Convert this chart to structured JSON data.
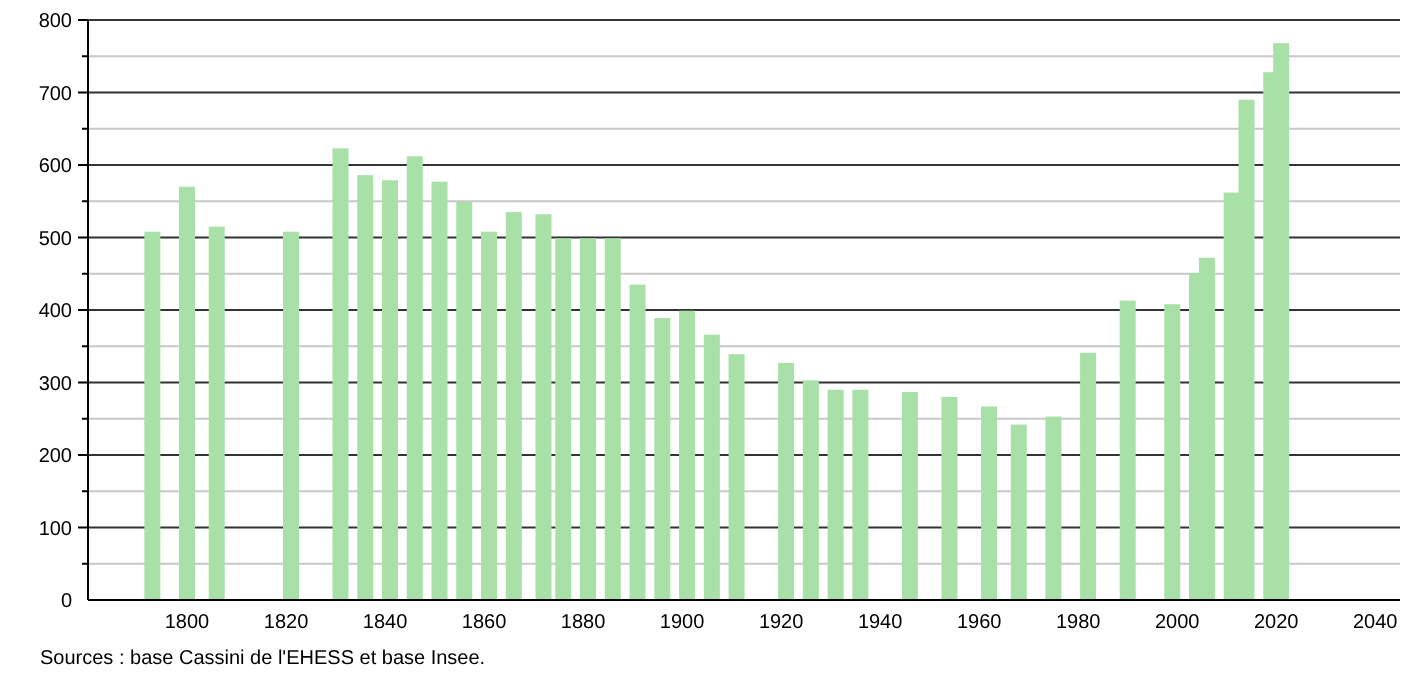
{
  "chart_data": {
    "type": "bar",
    "annotations": [
      "Sources : base Cassini de l'EHESS et base Insee."
    ],
    "x": [
      1793,
      1800,
      1806,
      1821,
      1831,
      1836,
      1841,
      1846,
      1851,
      1856,
      1861,
      1866,
      1872,
      1876,
      1881,
      1886,
      1891,
      1896,
      1901,
      1906,
      1911,
      1921,
      1926,
      1931,
      1936,
      1946,
      1954,
      1962,
      1968,
      1975,
      1982,
      1990,
      1999,
      2004,
      2006,
      2011,
      2014,
      2019,
      2021
    ],
    "values": [
      508,
      570,
      515,
      508,
      623,
      586,
      579,
      612,
      577,
      549,
      508,
      535,
      532,
      499,
      499,
      499,
      435,
      389,
      399,
      366,
      339,
      327,
      303,
      290,
      290,
      287,
      280,
      267,
      242,
      253,
      341,
      413,
      408,
      451,
      472,
      562,
      690,
      728,
      768
    ],
    "color": "#a8e0a8",
    "xlim": [
      1780,
      2045
    ],
    "xticks": [
      1800,
      1820,
      1840,
      1860,
      1880,
      1900,
      1920,
      1940,
      1960,
      1980,
      2000,
      2020,
      2040
    ],
    "ylim": [
      0,
      800
    ],
    "yticks": [
      0,
      {
        "value": 50,
        "label": null
      },
      100,
      {
        "value": 150,
        "label": null
      },
      200,
      {
        "value": 250,
        "label": null
      },
      300,
      {
        "value": 350,
        "label": null
      },
      400,
      {
        "value": 450,
        "label": null
      },
      500,
      {
        "value": 550,
        "label": null
      },
      600,
      {
        "value": 650,
        "label": null
      },
      700,
      {
        "value": 750,
        "label": null
      },
      800
    ],
    "grid": "y"
  }
}
